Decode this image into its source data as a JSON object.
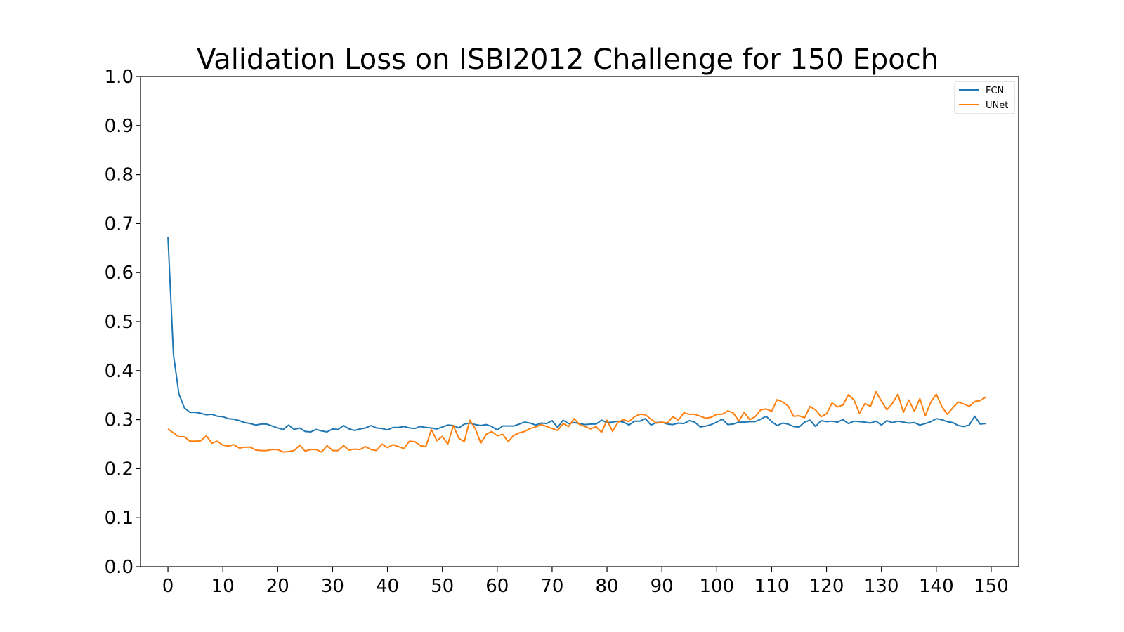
{
  "chart_data": {
    "type": "line",
    "title": "Validation Loss on ISBI2012 Challenge for 150 Epoch",
    "xlabel": "",
    "ylabel": "",
    "xlim": [
      -5,
      155
    ],
    "ylim": [
      0.0,
      1.0
    ],
    "xticks": [
      0,
      10,
      20,
      30,
      40,
      50,
      60,
      70,
      80,
      90,
      100,
      110,
      120,
      130,
      140,
      150
    ],
    "yticks": [
      0.0,
      0.1,
      0.2,
      0.3,
      0.4,
      0.5,
      0.6,
      0.7,
      0.8,
      0.9,
      1.0
    ],
    "xtick_labels": [
      "0",
      "10",
      "20",
      "30",
      "40",
      "50",
      "60",
      "70",
      "80",
      "90",
      "100",
      "110",
      "120",
      "130",
      "140",
      "150"
    ],
    "ytick_labels": [
      "0.0",
      "0.1",
      "0.2",
      "0.3",
      "0.4",
      "0.5",
      "0.6",
      "0.7",
      "0.8",
      "0.9",
      "1.0"
    ],
    "grid": false,
    "legend_position": "top-right",
    "series": [
      {
        "name": "FCN",
        "color": "#1f77b4",
        "values": [
          0.673,
          0.433,
          0.352,
          0.324,
          0.315,
          0.315,
          0.313,
          0.31,
          0.311,
          0.307,
          0.306,
          0.302,
          0.301,
          0.298,
          0.294,
          0.292,
          0.289,
          0.291,
          0.291,
          0.287,
          0.283,
          0.28,
          0.289,
          0.28,
          0.283,
          0.276,
          0.275,
          0.28,
          0.277,
          0.275,
          0.281,
          0.28,
          0.288,
          0.281,
          0.278,
          0.281,
          0.283,
          0.288,
          0.283,
          0.282,
          0.279,
          0.284,
          0.284,
          0.286,
          0.283,
          0.282,
          0.286,
          0.284,
          0.283,
          0.281,
          0.285,
          0.289,
          0.288,
          0.283,
          0.291,
          0.293,
          0.29,
          0.288,
          0.29,
          0.286,
          0.279,
          0.287,
          0.287,
          0.287,
          0.291,
          0.295,
          0.293,
          0.289,
          0.293,
          0.292,
          0.298,
          0.284,
          0.299,
          0.292,
          0.294,
          0.292,
          0.29,
          0.291,
          0.291,
          0.299,
          0.294,
          0.295,
          0.297,
          0.295,
          0.289,
          0.297,
          0.297,
          0.302,
          0.289,
          0.294,
          0.295,
          0.291,
          0.29,
          0.293,
          0.292,
          0.298,
          0.295,
          0.285,
          0.287,
          0.29,
          0.295,
          0.301,
          0.29,
          0.291,
          0.295,
          0.295,
          0.296,
          0.296,
          0.301,
          0.307,
          0.296,
          0.288,
          0.293,
          0.291,
          0.286,
          0.285,
          0.295,
          0.299,
          0.286,
          0.298,
          0.296,
          0.297,
          0.295,
          0.3,
          0.292,
          0.297,
          0.296,
          0.295,
          0.293,
          0.297,
          0.289,
          0.298,
          0.294,
          0.297,
          0.295,
          0.293,
          0.294,
          0.289,
          0.292,
          0.296,
          0.302,
          0.3,
          0.296,
          0.294,
          0.288,
          0.286,
          0.289,
          0.307,
          0.291,
          0.292
        ]
      },
      {
        "name": "UNet",
        "color": "#ff7f0e",
        "values": [
          0.281,
          0.273,
          0.265,
          0.265,
          0.256,
          0.256,
          0.257,
          0.267,
          0.252,
          0.256,
          0.248,
          0.246,
          0.249,
          0.242,
          0.244,
          0.244,
          0.238,
          0.237,
          0.237,
          0.239,
          0.239,
          0.234,
          0.235,
          0.237,
          0.248,
          0.236,
          0.239,
          0.239,
          0.234,
          0.247,
          0.237,
          0.237,
          0.247,
          0.238,
          0.24,
          0.239,
          0.245,
          0.239,
          0.237,
          0.25,
          0.243,
          0.249,
          0.245,
          0.241,
          0.256,
          0.255,
          0.247,
          0.245,
          0.28,
          0.257,
          0.266,
          0.25,
          0.288,
          0.262,
          0.255,
          0.299,
          0.282,
          0.252,
          0.27,
          0.276,
          0.267,
          0.27,
          0.255,
          0.268,
          0.273,
          0.276,
          0.282,
          0.285,
          0.29,
          0.286,
          0.282,
          0.278,
          0.292,
          0.286,
          0.302,
          0.29,
          0.286,
          0.281,
          0.286,
          0.274,
          0.299,
          0.276,
          0.295,
          0.3,
          0.296,
          0.306,
          0.311,
          0.31,
          0.301,
          0.293,
          0.295,
          0.293,
          0.306,
          0.299,
          0.314,
          0.311,
          0.311,
          0.307,
          0.303,
          0.305,
          0.311,
          0.311,
          0.318,
          0.314,
          0.297,
          0.315,
          0.3,
          0.306,
          0.32,
          0.322,
          0.317,
          0.341,
          0.336,
          0.328,
          0.307,
          0.308,
          0.304,
          0.327,
          0.32,
          0.306,
          0.312,
          0.334,
          0.326,
          0.33,
          0.351,
          0.34,
          0.313,
          0.333,
          0.327,
          0.357,
          0.338,
          0.32,
          0.333,
          0.352,
          0.315,
          0.34,
          0.317,
          0.343,
          0.308,
          0.336,
          0.352,
          0.327,
          0.311,
          0.324,
          0.336,
          0.332,
          0.327,
          0.337,
          0.339,
          0.346
        ]
      }
    ]
  }
}
